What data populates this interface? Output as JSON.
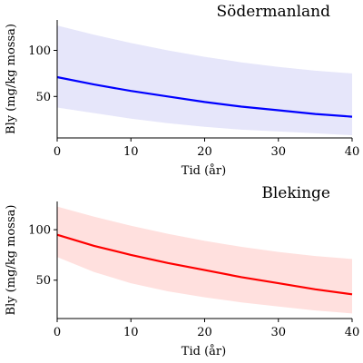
{
  "chart_data": [
    {
      "type": "line",
      "title": "Södermanland",
      "xlabel": "Tid (år)",
      "ylabel": "Bly (mg/kg mossa)",
      "xlim": [
        0,
        40
      ],
      "ylim": [
        5,
        133
      ],
      "xticks": [
        0,
        10,
        20,
        30,
        40
      ],
      "yticks": [
        50,
        100
      ],
      "grid": false,
      "line_color": "#0000ff",
      "band_color": "#e6e6fa",
      "x": [
        0,
        5,
        10,
        15,
        20,
        25,
        30,
        35,
        40
      ],
      "series": [
        {
          "values": [
            71,
            63,
            56,
            50,
            44,
            39,
            35,
            31,
            28
          ]
        }
      ],
      "band_upper": [
        127,
        117,
        108,
        100,
        93,
        87,
        82,
        78,
        75
      ],
      "band_lower": [
        38,
        32,
        26,
        21,
        17,
        14,
        12,
        10,
        8
      ]
    },
    {
      "type": "line",
      "title": "Blekinge",
      "xlabel": "Tid (år)",
      "ylabel": "Bly (mg/kg mossa)",
      "xlim": [
        0,
        40
      ],
      "ylim": [
        12,
        128
      ],
      "xticks": [
        0,
        10,
        20,
        30,
        40
      ],
      "yticks": [
        50,
        100
      ],
      "grid": false,
      "line_color": "#ff0000",
      "band_color": "#ffe0de",
      "x": [
        0,
        5,
        10,
        15,
        20,
        25,
        30,
        35,
        40
      ],
      "series": [
        {
          "values": [
            95,
            84,
            75,
            67,
            60,
            53,
            47,
            41,
            36
          ]
        }
      ],
      "band_upper": [
        123,
        113,
        104,
        96,
        89,
        83,
        78,
        74,
        71
      ],
      "band_lower": [
        73,
        58,
        47,
        39,
        33,
        28,
        24,
        20,
        17
      ]
    }
  ]
}
